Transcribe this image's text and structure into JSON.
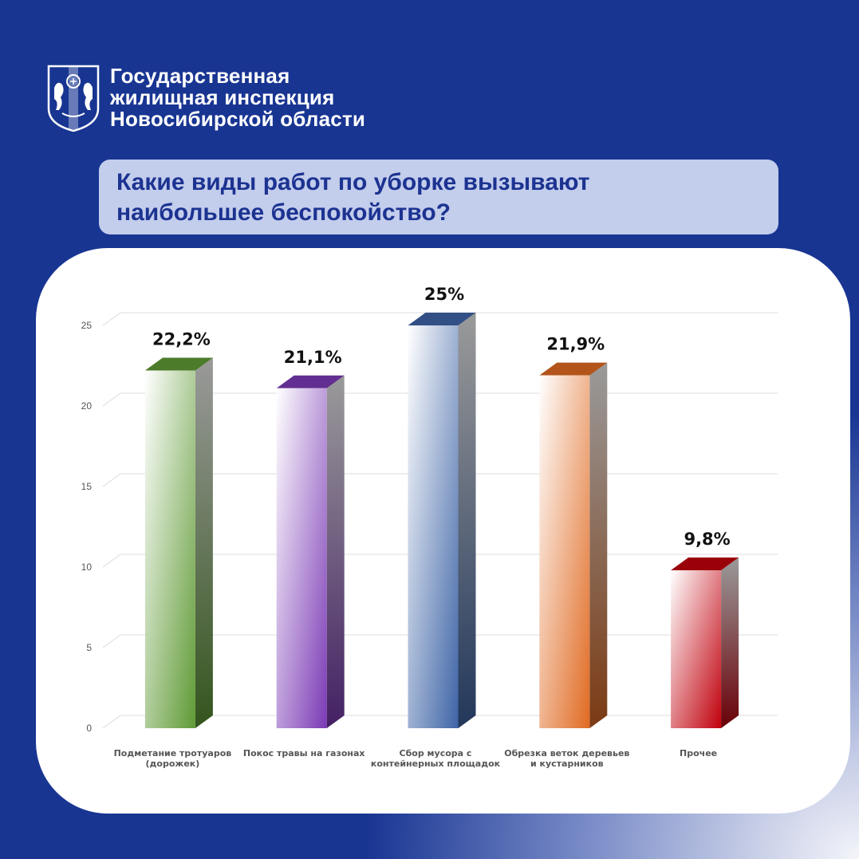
{
  "header": {
    "org_line1": "Государственная",
    "org_line2": "жилищная инспекция",
    "org_line3": "Новосибирской области",
    "emblem_icon": "novosibirsk-coat-of-arms-icon"
  },
  "question": {
    "line1": "Какие виды работ по уборке вызывают",
    "line2": "наибольшее беспокойство?"
  },
  "colors": {
    "background": "#183592",
    "question_box": "#c3cdec",
    "question_text": "#1c3391",
    "bar_green": "#5f9a35",
    "bar_purple": "#7b3ab5",
    "bar_blue": "#3e64a6",
    "bar_orange": "#e06a22",
    "bar_red": "#c0000c"
  },
  "chart_data": {
    "type": "bar",
    "style": "3d-columns",
    "categories": [
      [
        "Подметание тротуаров",
        "(дорожек)"
      ],
      [
        "Покос травы на газонах"
      ],
      [
        "Сбор мусора с",
        "контейнерных площадок"
      ],
      [
        "Обрезка веток деревьев",
        "и кустарников"
      ],
      [
        "Прочее"
      ]
    ],
    "values": [
      22.2,
      21.1,
      25,
      21.9,
      9.8
    ],
    "value_labels": [
      "22,2%",
      "21,1%",
      "25%",
      "21,9%",
      "9,8%"
    ],
    "bar_colors": [
      "#5f9a35",
      "#7b3ab5",
      "#3e64a6",
      "#e06a22",
      "#c0000c"
    ],
    "yticks": [
      0,
      5,
      10,
      15,
      20,
      25
    ],
    "ylim": [
      0,
      25
    ],
    "grid": true,
    "title": "",
    "xlabel": "",
    "ylabel": ""
  }
}
